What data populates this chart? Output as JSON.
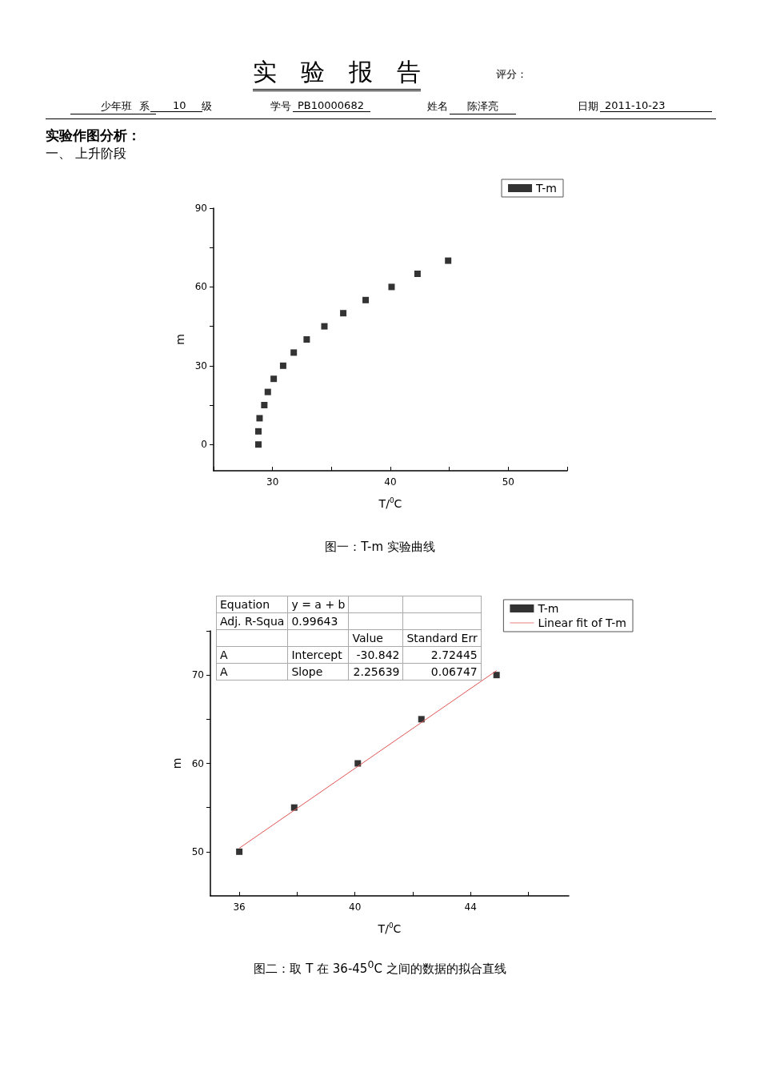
{
  "chart_data": [
    {
      "type": "scatter",
      "title": "实　验　报　告",
      "xlabel": "T/$^{0}$C",
      "ylabel": "m",
      "annotations": [
        "评分：",
        "少年班",
        "系",
        "10",
        "级",
        "学号",
        "PB10000682",
        "姓名",
        "陈泽亮",
        "日期",
        "2011-10-23",
        "实验作图分析：",
        "一、  上升阶段",
        "图一：T-m 实验曲线"
      ],
      "series": [
        {
          "name": "T-m",
          "color": "#000000",
          "x": [
            28.8,
            28.8,
            28.9,
            29.3,
            29.6,
            30.1,
            30.9,
            31.8,
            32.9,
            34.4,
            36.0,
            37.9,
            40.1,
            42.3,
            44.9
          ],
          "values": [
            0,
            5,
            10,
            15,
            20,
            25,
            30,
            35,
            40,
            45,
            50,
            55,
            60,
            65,
            70
          ]
        }
      ],
      "xlim": [
        25,
        55
      ],
      "xticks": [
        {
          "value": 25,
          "label": null
        },
        30,
        {
          "value": 35,
          "label": null
        },
        40,
        {
          "value": 45,
          "label": null
        },
        50,
        {
          "value": 55,
          "label": null
        }
      ],
      "ylim": [
        -10,
        90
      ],
      "yticks": [
        0,
        {
          "value": 15,
          "label": null
        },
        30,
        {
          "value": 45,
          "label": null
        },
        60,
        {
          "value": 75,
          "label": null
        },
        90
      ],
      "grid": false,
      "legend": "top right",
      "marker": "square"
    },
    {
      "type": "scatter",
      "xlabel": "T/$^{0}$C",
      "ylabel": "m",
      "annotations": [
        "Equation",
        "y = a + b",
        "Adj. R-Squa",
        "0.99643",
        "Value",
        "Standard Err",
        "A",
        "Intercept",
        "-30.842",
        "2.72445",
        "A",
        "Slope",
        "2.25639",
        "0.06747",
        "图二：取 T 在 36-45$^{0}$C 之间的数据的拟合直线"
      ],
      "series": [
        {
          "name": "T-m",
          "color": "#000000",
          "x": [
            36.0,
            37.9,
            40.1,
            42.3,
            44.9
          ],
          "values": [
            50,
            55,
            60,
            65,
            70
          ]
        },
        {
          "name": "Linear fit of T-m",
          "type": "line",
          "color": "#e05555",
          "x": [
            36.0,
            44.9
          ],
          "values": [
            50.4,
            70.5
          ],
          "marker": "none"
        }
      ],
      "xlim": [
        35,
        47.4
      ],
      "xticks": [
        36,
        {
          "value": 38,
          "label": null
        },
        40,
        {
          "value": 42,
          "label": null
        },
        44,
        {
          "value": 46,
          "label": null
        }
      ],
      "ylim": [
        45,
        75
      ],
      "yticks": [
        50,
        {
          "value": 55,
          "label": null
        },
        60,
        {
          "value": 65,
          "label": null
        },
        70,
        {
          "value": 75,
          "label": null
        }
      ],
      "grid": false,
      "legend": "top right",
      "marker": "square"
    }
  ]
}
